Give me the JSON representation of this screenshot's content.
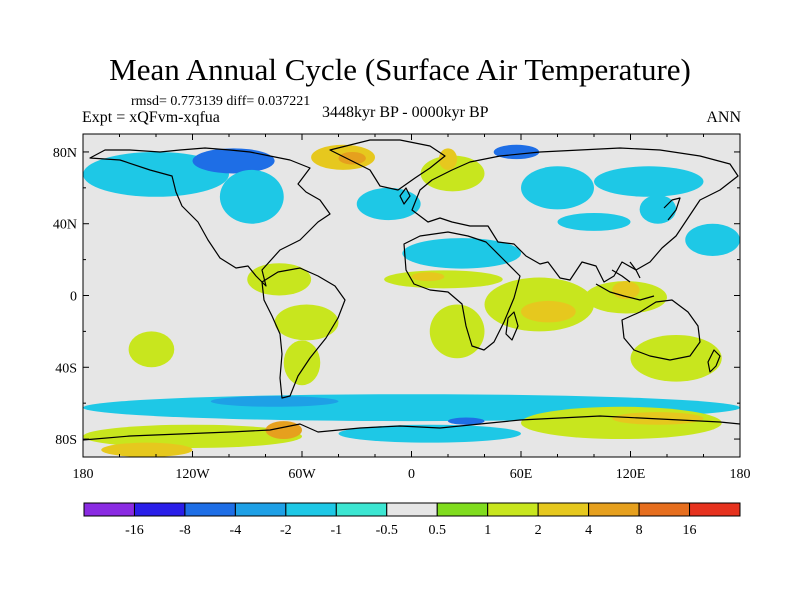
{
  "title": "Mean Annual Cycle (Surface Air Temperature)",
  "stats": "rmsd= 0.773139 diff= 0.037221",
  "experiment": "Expt = xQFvm-xqfua",
  "period": "3448kyr BP - 0000kyr BP",
  "season": "ANN",
  "axes": {
    "x_ticks": [
      {
        "lon": -180,
        "label": "180"
      },
      {
        "lon": -120,
        "label": "120W"
      },
      {
        "lon": -60,
        "label": "60W"
      },
      {
        "lon": 0,
        "label": "0"
      },
      {
        "lon": 60,
        "label": "60E"
      },
      {
        "lon": 120,
        "label": "120E"
      },
      {
        "lon": 180,
        "label": "180"
      }
    ],
    "y_ticks": [
      {
        "lat": 80,
        "label": "80N"
      },
      {
        "lat": 40,
        "label": "40N"
      },
      {
        "lat": 0,
        "label": "0"
      },
      {
        "lat": -40,
        "label": "40S"
      },
      {
        "lat": -80,
        "label": "80S"
      }
    ],
    "lon_range": [
      -180,
      180
    ],
    "lat_range": [
      -90,
      90
    ]
  },
  "colorbar": {
    "colors": [
      "#8a2be2",
      "#2a1ee8",
      "#1e6ee6",
      "#1ea0e6",
      "#1ec8e6",
      "#3ce6d2",
      "#e6e6e6",
      "#80dc1e",
      "#c8e61e",
      "#e6c81e",
      "#e6a01e",
      "#e66e1e",
      "#e6321e"
    ],
    "labels": [
      "-16",
      "-8",
      "-4",
      "-2",
      "-1",
      "-0.5",
      "0.5",
      "1",
      "2",
      "4",
      "8",
      "16"
    ]
  },
  "chart_data": {
    "type": "heatmap",
    "title": "Mean Annual Cycle (Surface Air Temperature)",
    "subtitle": "3448kyr BP - 0000kyr BP",
    "variable": "Surface Air Temperature difference",
    "x_axis": "longitude",
    "xlim": [
      -180,
      180
    ],
    "y_axis": "latitude",
    "ylim": [
      -90,
      90
    ],
    "levels": [
      -16,
      -8,
      -4,
      -2,
      -1,
      -0.5,
      0.5,
      1,
      2,
      4,
      8,
      16
    ],
    "rmsd": 0.773139,
    "diff": 0.037221,
    "regions": [
      {
        "lon": [
          -180,
          -100
        ],
        "lat": [
          55,
          80
        ],
        "level": -1
      },
      {
        "lon": [
          -120,
          -75
        ],
        "lat": [
          68,
          82
        ],
        "level": -4
      },
      {
        "lon": [
          -105,
          -70
        ],
        "lat": [
          40,
          70
        ],
        "level": -1
      },
      {
        "lon": [
          -55,
          -20
        ],
        "lat": [
          70,
          84
        ],
        "level": 2
      },
      {
        "lon": [
          -40,
          -25
        ],
        "lat": [
          73,
          80
        ],
        "level": 4
      },
      {
        "lon": [
          -30,
          5
        ],
        "lat": [
          42,
          60
        ],
        "level": -1
      },
      {
        "lon": [
          5,
          40
        ],
        "lat": [
          58,
          78
        ],
        "level": 1
      },
      {
        "lon": [
          15,
          25
        ],
        "lat": [
          70,
          82
        ],
        "level": 2
      },
      {
        "lon": [
          45,
          70
        ],
        "lat": [
          76,
          84
        ],
        "level": -4
      },
      {
        "lon": [
          60,
          100
        ],
        "lat": [
          48,
          72
        ],
        "level": -1
      },
      {
        "lon": [
          100,
          160
        ],
        "lat": [
          55,
          72
        ],
        "level": -1
      },
      {
        "lon": [
          125,
          145
        ],
        "lat": [
          40,
          56
        ],
        "level": -1
      },
      {
        "lon": [
          150,
          180
        ],
        "lat": [
          22,
          40
        ],
        "level": -1
      },
      {
        "lon": [
          80,
          120
        ],
        "lat": [
          36,
          46
        ],
        "level": -1
      },
      {
        "lon": [
          -5,
          60
        ],
        "lat": [
          15,
          32
        ],
        "level": -1
      },
      {
        "lon": [
          -15,
          50
        ],
        "lat": [
          4,
          14
        ],
        "level": 1
      },
      {
        "lon": [
          0,
          18
        ],
        "lat": [
          8,
          13
        ],
        "level": 2
      },
      {
        "lon": [
          -90,
          -55
        ],
        "lat": [
          0,
          18
        ],
        "level": 1
      },
      {
        "lon": [
          -75,
          -40
        ],
        "lat": [
          -25,
          -5
        ],
        "level": 1
      },
      {
        "lon": [
          -70,
          -50
        ],
        "lat": [
          -50,
          -25
        ],
        "level": 1
      },
      {
        "lon": [
          -155,
          -130
        ],
        "lat": [
          -40,
          -20
        ],
        "level": 1
      },
      {
        "lon": [
          10,
          40
        ],
        "lat": [
          -35,
          -5
        ],
        "level": 1
      },
      {
        "lon": [
          40,
          100
        ],
        "lat": [
          -20,
          10
        ],
        "level": 1
      },
      {
        "lon": [
          60,
          90
        ],
        "lat": [
          -15,
          -3
        ],
        "level": 2
      },
      {
        "lon": [
          95,
          140
        ],
        "lat": [
          -10,
          8
        ],
        "level": 1
      },
      {
        "lon": [
          110,
          125
        ],
        "lat": [
          -2,
          8
        ],
        "level": 2
      },
      {
        "lon": [
          120,
          170
        ],
        "lat": [
          -48,
          -22
        ],
        "level": 1
      },
      {
        "lon": [
          -180,
          180
        ],
        "lat": [
          -70,
          -55
        ],
        "level": -1
      },
      {
        "lon": [
          -110,
          -40
        ],
        "lat": [
          -62,
          -56
        ],
        "level": -2
      },
      {
        "lon": [
          -180,
          -60
        ],
        "lat": [
          -85,
          -72
        ],
        "level": 1
      },
      {
        "lon": [
          -170,
          -120
        ],
        "lat": [
          -90,
          -82
        ],
        "level": 2
      },
      {
        "lon": [
          -80,
          -60
        ],
        "lat": [
          -80,
          -70
        ],
        "level": 4
      },
      {
        "lon": [
          -40,
          60
        ],
        "lat": [
          -82,
          -72
        ],
        "level": -1
      },
      {
        "lon": [
          20,
          40
        ],
        "lat": [
          -72,
          -68
        ],
        "level": -4
      },
      {
        "lon": [
          60,
          170
        ],
        "lat": [
          -80,
          -62
        ],
        "level": 1
      },
      {
        "lon": [
          110,
          160
        ],
        "lat": [
          -72,
          -65
        ],
        "level": 2
      }
    ]
  }
}
